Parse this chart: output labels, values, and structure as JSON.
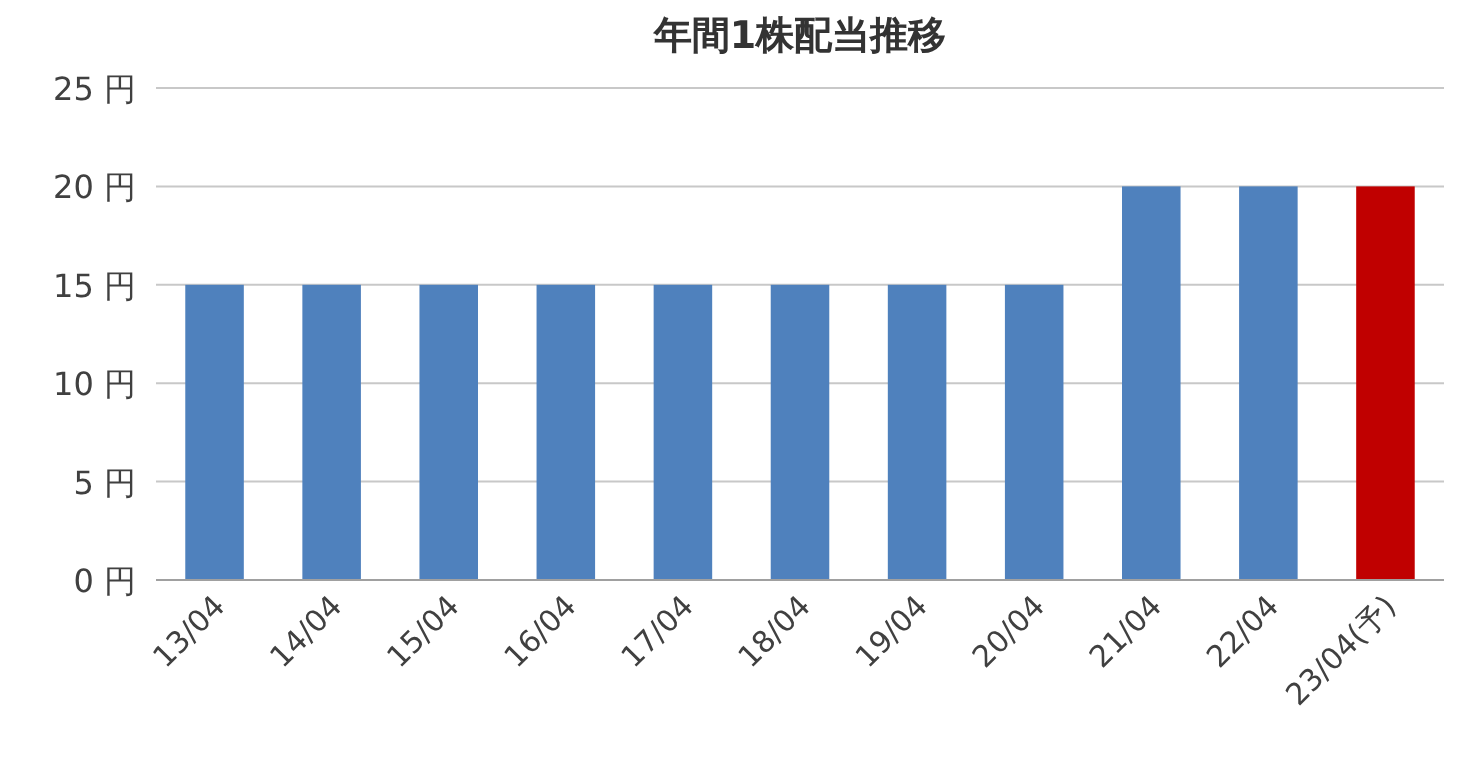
{
  "chart_data": {
    "type": "bar",
    "title": "年間1株配当推移",
    "categories": [
      "13/04",
      "14/04",
      "15/04",
      "16/04",
      "17/04",
      "18/04",
      "19/04",
      "20/04",
      "21/04",
      "22/04",
      "23/04(予)"
    ],
    "values": [
      15,
      15,
      15,
      15,
      15,
      15,
      15,
      15,
      20,
      20,
      20
    ],
    "colors": [
      "#4f81bd",
      "#4f81bd",
      "#4f81bd",
      "#4f81bd",
      "#4f81bd",
      "#4f81bd",
      "#4f81bd",
      "#4f81bd",
      "#4f81bd",
      "#4f81bd",
      "#c00000"
    ],
    "ylim": [
      0,
      25
    ],
    "yticks": [
      {
        "value": 0,
        "label": "0 円"
      },
      {
        "value": 5,
        "label": "5 円"
      },
      {
        "value": 10,
        "label": "10 円"
      },
      {
        "value": 15,
        "label": "15 円"
      },
      {
        "value": 20,
        "label": "20 円"
      },
      {
        "value": 25,
        "label": "25 円"
      }
    ],
    "grid": "y"
  }
}
